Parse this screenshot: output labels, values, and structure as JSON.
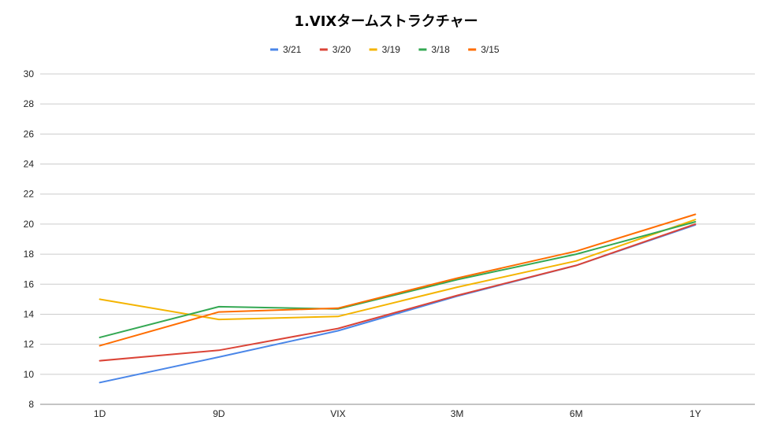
{
  "chart_data": {
    "type": "line",
    "title": "1.VIXタームストラクチャー",
    "xlabel": "",
    "ylabel": "",
    "categories": [
      "1D",
      "9D",
      "VIX",
      "3M",
      "6M",
      "1Y"
    ],
    "ylim": [
      8,
      30
    ],
    "yticks": [
      8,
      10,
      12,
      14,
      16,
      18,
      20,
      22,
      24,
      26,
      28,
      30
    ],
    "grid": true,
    "legend_position": "top",
    "series": [
      {
        "name": "3/21",
        "color": "#4a86e8",
        "values": [
          9.45,
          11.15,
          12.9,
          15.2,
          17.25,
          19.95
        ]
      },
      {
        "name": "3/20",
        "color": "#db4437",
        "values": [
          10.9,
          11.6,
          13.05,
          15.25,
          17.25,
          20.0
        ]
      },
      {
        "name": "3/19",
        "color": "#f4b400",
        "values": [
          15.0,
          13.65,
          13.85,
          15.8,
          17.55,
          20.3
        ]
      },
      {
        "name": "3/18",
        "color": "#34a853",
        "values": [
          12.45,
          14.5,
          14.35,
          16.3,
          18.0,
          20.15
        ]
      },
      {
        "name": "3/15",
        "color": "#ff6d00",
        "values": [
          11.9,
          14.15,
          14.4,
          16.4,
          18.2,
          20.65
        ]
      }
    ]
  }
}
